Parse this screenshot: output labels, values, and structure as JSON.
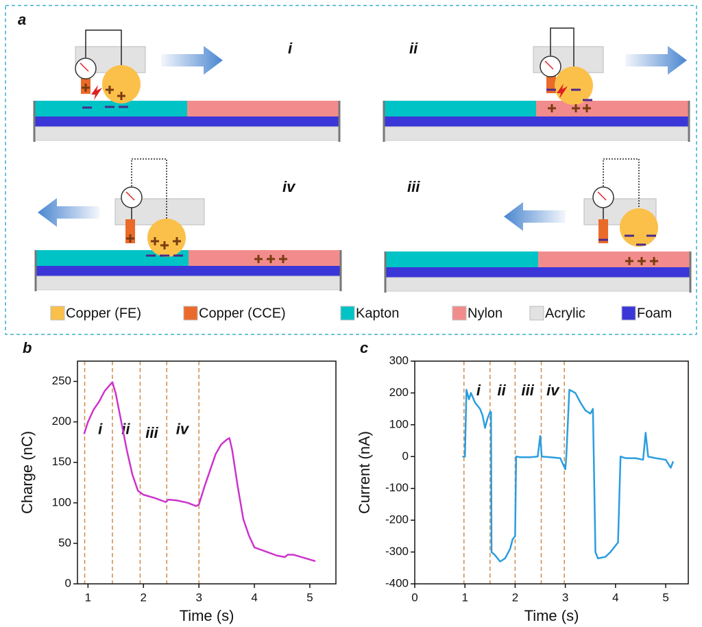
{
  "panel_a": {
    "label": "a",
    "steps": [
      "i",
      "ii",
      "iv",
      "iii"
    ],
    "legend": [
      {
        "name": "Copper (FE)",
        "color": "#fbc04a"
      },
      {
        "name": "Copper (CCE)",
        "color": "#ea6a2a"
      },
      {
        "name": "Kapton",
        "color": "#00c3c6"
      },
      {
        "name": "Nylon",
        "color": "#f28c8c"
      },
      {
        "name": "Acrylic",
        "color": "#e2e2e2"
      },
      {
        "name": "Foam",
        "color": "#3a36d8"
      }
    ]
  },
  "chart_data": [
    {
      "type": "line",
      "panel_label": "b",
      "xlabel": "Time (s)",
      "ylabel": "Charge (nC)",
      "color": "#cc33cc",
      "xlim": [
        0.81,
        5.47
      ],
      "ylim": [
        0,
        275
      ],
      "xticks": [
        1,
        2,
        3,
        4,
        5
      ],
      "yticks": [
        0,
        50,
        100,
        150,
        200,
        250
      ],
      "vlines": [
        0.94,
        1.44,
        1.94,
        2.42,
        3.0
      ],
      "annotations": [
        {
          "text": "i",
          "x": 1.22,
          "y": 190
        },
        {
          "text": "ii",
          "x": 1.68,
          "y": 190
        },
        {
          "text": "iii",
          "x": 2.15,
          "y": 185
        },
        {
          "text": "iv",
          "x": 2.7,
          "y": 190
        }
      ],
      "x": [
        0.93,
        1.0,
        1.1,
        1.2,
        1.3,
        1.4,
        1.44,
        1.5,
        1.6,
        1.7,
        1.8,
        1.9,
        2.0,
        2.2,
        2.4,
        2.45,
        2.6,
        2.8,
        2.95,
        3.0,
        3.1,
        3.2,
        3.3,
        3.4,
        3.5,
        3.55,
        3.6,
        3.7,
        3.8,
        3.9,
        4.0,
        4.2,
        4.4,
        4.55,
        4.6,
        4.7,
        4.8,
        4.9,
        5.0,
        5.1
      ],
      "values": [
        185,
        200,
        215,
        225,
        238,
        246,
        249,
        235,
        200,
        165,
        135,
        115,
        110,
        106,
        101,
        104,
        103,
        100,
        96,
        98,
        120,
        140,
        160,
        172,
        178,
        180,
        165,
        120,
        80,
        60,
        45,
        40,
        35,
        33,
        36,
        36,
        34,
        32,
        30,
        28
      ]
    },
    {
      "type": "line",
      "panel_label": "c",
      "xlabel": "Time (s)",
      "ylabel": "Current (nA)",
      "color": "#2a9de0",
      "xlim": [
        0,
        5.45
      ],
      "ylim": [
        -400,
        300
      ],
      "xticks": [
        0,
        1,
        2,
        3,
        4,
        5
      ],
      "yticks": [
        -400,
        -300,
        -200,
        -100,
        0,
        100,
        200,
        300
      ],
      "vlines": [
        0.98,
        1.5,
        2.0,
        2.52,
        2.98
      ],
      "annotations": [
        {
          "text": "i",
          "x": 1.27,
          "y": 205
        },
        {
          "text": "ii",
          "x": 1.73,
          "y": 205
        },
        {
          "text": "iii",
          "x": 2.25,
          "y": 205
        },
        {
          "text": "iv",
          "x": 2.75,
          "y": 205
        }
      ],
      "x": [
        0.95,
        1.0,
        1.03,
        1.08,
        1.12,
        1.2,
        1.3,
        1.35,
        1.4,
        1.45,
        1.5,
        1.52,
        1.53,
        1.6,
        1.7,
        1.8,
        1.9,
        1.95,
        2.0,
        2.02,
        2.1,
        2.3,
        2.45,
        2.5,
        2.53,
        2.7,
        2.9,
        3.0,
        3.02,
        3.08,
        3.2,
        3.3,
        3.4,
        3.5,
        3.55,
        3.6,
        3.65,
        3.8,
        3.9,
        4.0,
        4.05,
        4.1,
        4.2,
        4.4,
        4.55,
        4.6,
        4.65,
        4.8,
        5.0,
        5.1,
        5.15
      ],
      "values": [
        0,
        0,
        210,
        180,
        200,
        170,
        150,
        130,
        90,
        120,
        140,
        140,
        -300,
        -310,
        -330,
        -320,
        -290,
        -260,
        -250,
        0,
        -2,
        -2,
        0,
        65,
        0,
        -2,
        -5,
        -40,
        0,
        210,
        200,
        170,
        145,
        135,
        150,
        -300,
        -320,
        -315,
        -300,
        -280,
        -270,
        0,
        -5,
        -5,
        -10,
        75,
        0,
        -5,
        -10,
        -35,
        -15
      ]
    }
  ]
}
